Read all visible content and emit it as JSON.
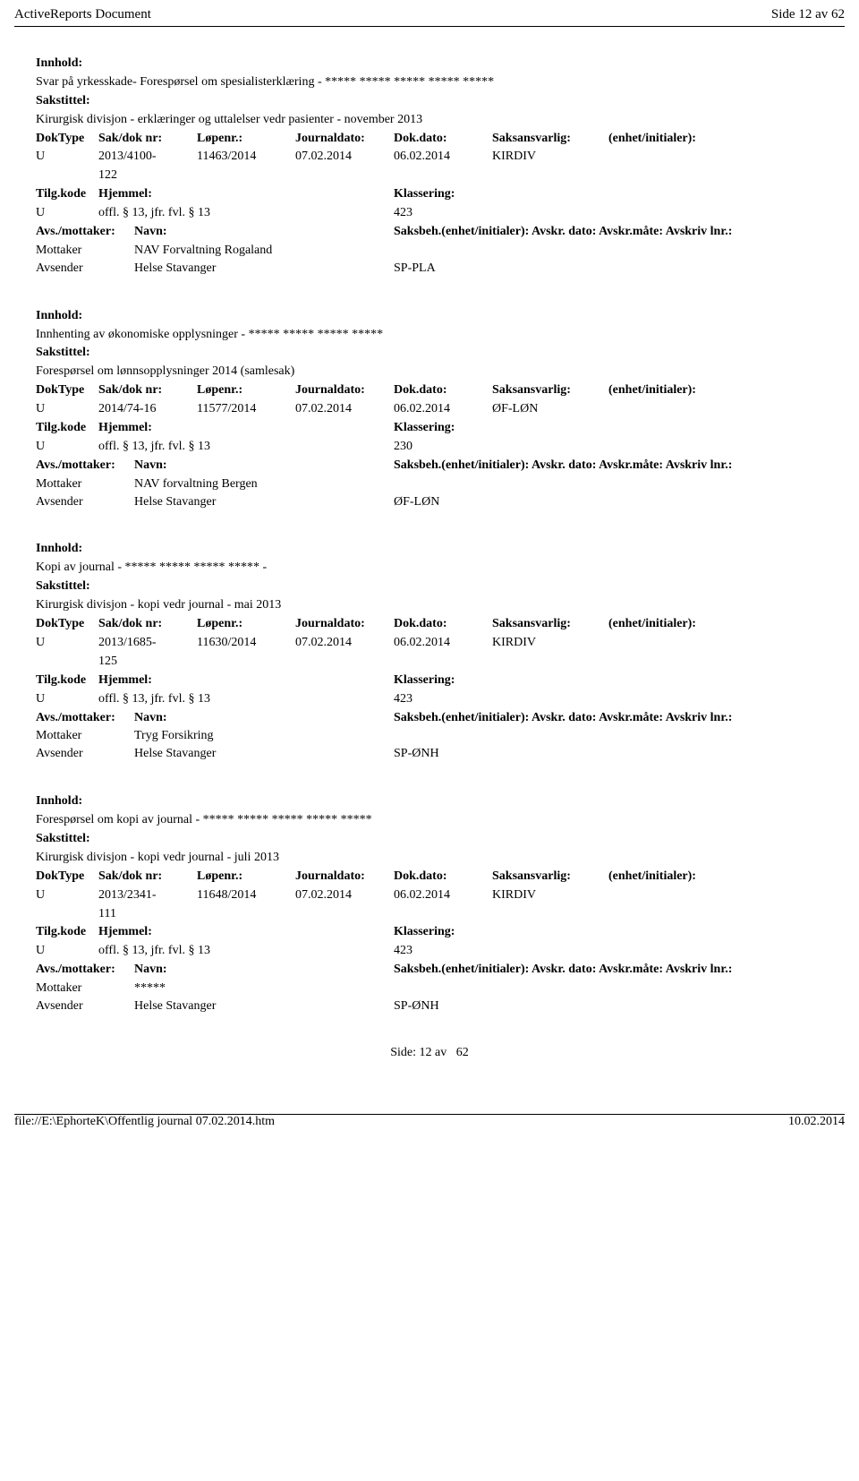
{
  "header": {
    "title": "ActiveReports Document",
    "pageinfo": "Side 12 av 62"
  },
  "records": [
    {
      "innhold_label": "Innhold:",
      "innhold": "Svar på yrkesskade- Forespørsel om spesialisterklæring - ***** ***** ***** ***** *****",
      "sakstittel_label": "Sakstittel:",
      "sakstittel": "Kirurgisk divisjon - erklæringer og uttalelser vedr pasienter - november 2013",
      "meta": {
        "hdr": {
          "doktype": "DokType",
          "sakdok": "Sak/dok nr:",
          "lopenr": "Løpenr.:",
          "jdato": "Journaldato:",
          "ddato": "Dok.dato:",
          "saksansv": "Saksansvarlig:",
          "enhet": "(enhet/initialer):"
        },
        "val": {
          "doktype": "U",
          "sakdok": "2013/4100-",
          "sakdok_sub": "122",
          "lopenr": "11463/2014",
          "jdato": "07.02.2014",
          "ddato": "06.02.2014",
          "saksansv": "KIRDIV",
          "enhet": ""
        }
      },
      "classify": {
        "hdr": {
          "tilgkode": "Tilg.kode",
          "hjemmel": "Hjemmel:",
          "klassering": "Klassering:"
        },
        "val": {
          "tilgkode": "U",
          "hjemmel": "offl. § 13, jfr. fvl. § 13",
          "klassering": "423"
        }
      },
      "actors_hdr": {
        "avs": "Avs./mottaker:",
        "navn": "Navn:",
        "saksbeh": "Saksbeh.(enhet/initialer): Avskr. dato: Avskr.måte: Avskriv lnr.:"
      },
      "actors": [
        {
          "role": "Mottaker",
          "name": "NAV Forvaltning Rogaland",
          "code": ""
        },
        {
          "role": "Avsender",
          "name": "Helse Stavanger",
          "code": "SP-PLA"
        }
      ]
    },
    {
      "innhold_label": "Innhold:",
      "innhold": "Innhenting av økonomiske opplysninger - ***** ***** ***** *****",
      "sakstittel_label": "Sakstittel:",
      "sakstittel": "Forespørsel om lønnsopplysninger 2014 (samlesak)",
      "meta": {
        "hdr": {
          "doktype": "DokType",
          "sakdok": "Sak/dok nr:",
          "lopenr": "Løpenr.:",
          "jdato": "Journaldato:",
          "ddato": "Dok.dato:",
          "saksansv": "Saksansvarlig:",
          "enhet": "(enhet/initialer):"
        },
        "val": {
          "doktype": "U",
          "sakdok": "2014/74-16",
          "sakdok_sub": "",
          "lopenr": "11577/2014",
          "jdato": "07.02.2014",
          "ddato": "06.02.2014",
          "saksansv": "ØF-LØN",
          "enhet": ""
        }
      },
      "classify": {
        "hdr": {
          "tilgkode": "Tilg.kode",
          "hjemmel": "Hjemmel:",
          "klassering": "Klassering:"
        },
        "val": {
          "tilgkode": "U",
          "hjemmel": "offl. § 13, jfr. fvl. § 13",
          "klassering": "230"
        }
      },
      "actors_hdr": {
        "avs": "Avs./mottaker:",
        "navn": "Navn:",
        "saksbeh": "Saksbeh.(enhet/initialer): Avskr. dato: Avskr.måte: Avskriv lnr.:"
      },
      "actors": [
        {
          "role": "Mottaker",
          "name": "NAV forvaltning Bergen",
          "code": ""
        },
        {
          "role": "Avsender",
          "name": "Helse Stavanger",
          "code": "ØF-LØN"
        }
      ]
    },
    {
      "innhold_label": "Innhold:",
      "innhold": "Kopi av journal - ***** ***** ***** ***** -",
      "sakstittel_label": "Sakstittel:",
      "sakstittel": "Kirurgisk divisjon - kopi vedr journal - mai 2013",
      "meta": {
        "hdr": {
          "doktype": "DokType",
          "sakdok": "Sak/dok nr:",
          "lopenr": "Løpenr.:",
          "jdato": "Journaldato:",
          "ddato": "Dok.dato:",
          "saksansv": "Saksansvarlig:",
          "enhet": "(enhet/initialer):"
        },
        "val": {
          "doktype": "U",
          "sakdok": "2013/1685-",
          "sakdok_sub": "125",
          "lopenr": "11630/2014",
          "jdato": "07.02.2014",
          "ddato": "06.02.2014",
          "saksansv": "KIRDIV",
          "enhet": ""
        }
      },
      "classify": {
        "hdr": {
          "tilgkode": "Tilg.kode",
          "hjemmel": "Hjemmel:",
          "klassering": "Klassering:"
        },
        "val": {
          "tilgkode": "U",
          "hjemmel": "offl. § 13, jfr. fvl. § 13",
          "klassering": "423"
        }
      },
      "actors_hdr": {
        "avs": "Avs./mottaker:",
        "navn": "Navn:",
        "saksbeh": "Saksbeh.(enhet/initialer): Avskr. dato: Avskr.måte: Avskriv lnr.:"
      },
      "actors": [
        {
          "role": "Mottaker",
          "name": "Tryg Forsikring",
          "code": ""
        },
        {
          "role": "Avsender",
          "name": "Helse Stavanger",
          "code": "SP-ØNH"
        }
      ]
    },
    {
      "innhold_label": "Innhold:",
      "innhold": "Forespørsel om kopi av journal - ***** ***** ***** ***** *****",
      "sakstittel_label": "Sakstittel:",
      "sakstittel": "Kirurgisk divisjon - kopi vedr journal - juli 2013",
      "meta": {
        "hdr": {
          "doktype": "DokType",
          "sakdok": "Sak/dok nr:",
          "lopenr": "Løpenr.:",
          "jdato": "Journaldato:",
          "ddato": "Dok.dato:",
          "saksansv": "Saksansvarlig:",
          "enhet": "(enhet/initialer):"
        },
        "val": {
          "doktype": "U",
          "sakdok": "2013/2341-",
          "sakdok_sub": "111",
          "lopenr": "11648/2014",
          "jdato": "07.02.2014",
          "ddato": "06.02.2014",
          "saksansv": "KIRDIV",
          "enhet": ""
        }
      },
      "classify": {
        "hdr": {
          "tilgkode": "Tilg.kode",
          "hjemmel": "Hjemmel:",
          "klassering": "Klassering:"
        },
        "val": {
          "tilgkode": "U",
          "hjemmel": "offl. § 13, jfr. fvl. § 13",
          "klassering": "423"
        }
      },
      "actors_hdr": {
        "avs": "Avs./mottaker:",
        "navn": "Navn:",
        "saksbeh": "Saksbeh.(enhet/initialer): Avskr. dato: Avskr.måte: Avskriv lnr.:"
      },
      "actors": [
        {
          "role": "Mottaker",
          "name": "*****",
          "code": ""
        },
        {
          "role": "Avsender",
          "name": "Helse Stavanger",
          "code": "SP-ØNH"
        }
      ]
    }
  ],
  "footer_side": {
    "prefix": "Side:",
    "page": "12",
    "of_word": "av",
    "total": "62"
  },
  "bottom": {
    "filepath": "file://E:\\EphorteK\\Offentlig journal 07.02.2014.htm",
    "date": "10.02.2014"
  }
}
